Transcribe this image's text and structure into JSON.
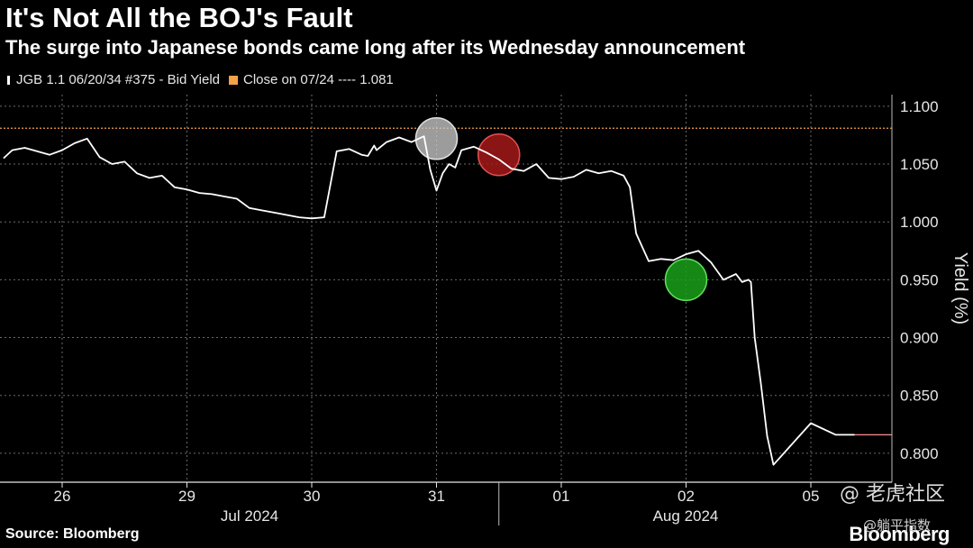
{
  "title": "It's Not All the BOJ's Fault",
  "subtitle": "The surge into Japanese bonds came long after its Wednesday announcement",
  "legend": {
    "series1": "JGB 1.1 06/20/34 #375 - Bid Yield",
    "series2": "Close on 07/24 ---- 1.081"
  },
  "source": "Source: Bloomberg",
  "brand": "Bloomberg",
  "watermark": {
    "primary": "@ 老虎社区",
    "secondary": "@躺平指数"
  },
  "colors": {
    "series": "#ffffff",
    "reference": "#f5a04a",
    "highlight_1": "#bdbdbd",
    "highlight_2": "#c0392b",
    "highlight_3": "#27ae27"
  },
  "chart_data": {
    "type": "line",
    "ylabel": "Yield (%)",
    "ylim": [
      0.775,
      1.11
    ],
    "y_ticks": [
      "1.100",
      "1.050",
      "1.000",
      "0.950",
      "0.900",
      "0.850",
      "0.800"
    ],
    "x_day_labels": [
      "26",
      "29",
      "30",
      "31",
      "01",
      "02",
      "05"
    ],
    "x_month_labels": [
      "Jul 2024",
      "Aug 2024"
    ],
    "reference_line": {
      "label": "Close on 07/24",
      "value": 1.081
    },
    "series": [
      {
        "name": "JGB 1.1 06/20/34 #375 - Bid Yield",
        "x_unit": "trading days from Jul 26 (0 = Jul 26, 1 = Jul 29, 2 = Jul 30, 3 = Jul 31, 4 = Aug 01, 5 = Aug 02, 6 = Aug 05)",
        "x": [
          -0.47,
          -0.4,
          -0.3,
          -0.2,
          -0.1,
          0.0,
          0.1,
          0.2,
          0.3,
          0.4,
          0.5,
          0.6,
          0.7,
          0.8,
          0.9,
          1.0,
          1.1,
          1.2,
          1.3,
          1.4,
          1.5,
          1.6,
          1.7,
          1.8,
          1.9,
          2.0,
          2.1,
          2.2,
          2.3,
          2.4,
          2.45,
          2.5,
          2.52,
          2.6,
          2.7,
          2.8,
          2.9,
          2.95,
          3.0,
          3.05,
          3.1,
          3.15,
          3.2,
          3.3,
          3.4,
          3.5,
          3.6,
          3.7,
          3.8,
          3.9,
          4.0,
          4.1,
          4.2,
          4.3,
          4.4,
          4.5,
          4.55,
          4.6,
          4.7,
          4.8,
          4.9,
          5.0,
          5.1,
          5.2,
          5.3,
          5.4,
          5.45,
          5.5,
          5.52,
          5.55,
          5.6,
          5.65,
          5.7,
          6.0,
          6.2,
          6.35
        ],
        "values": [
          1.055,
          1.062,
          1.064,
          1.061,
          1.058,
          1.062,
          1.068,
          1.072,
          1.056,
          1.05,
          1.052,
          1.042,
          1.038,
          1.04,
          1.03,
          1.028,
          1.025,
          1.024,
          1.022,
          1.02,
          1.012,
          1.01,
          1.008,
          1.006,
          1.004,
          1.003,
          1.004,
          1.061,
          1.063,
          1.058,
          1.057,
          1.066,
          1.062,
          1.069,
          1.073,
          1.069,
          1.074,
          1.045,
          1.027,
          1.042,
          1.05,
          1.047,
          1.062,
          1.065,
          1.06,
          1.054,
          1.046,
          1.044,
          1.05,
          1.038,
          1.037,
          1.039,
          1.045,
          1.042,
          1.044,
          1.04,
          1.03,
          0.99,
          0.966,
          0.968,
          0.967,
          0.972,
          0.975,
          0.965,
          0.95,
          0.955,
          0.948,
          0.95,
          0.948,
          0.9,
          0.86,
          0.815,
          0.79,
          0.826,
          0.816,
          0.816
        ]
      }
    ],
    "highlights": [
      {
        "x": 3.0,
        "value": 1.072,
        "color": "grey"
      },
      {
        "x": 3.5,
        "value": 1.058,
        "color": "red"
      },
      {
        "x": 5.0,
        "value": 0.95,
        "color": "green"
      }
    ]
  }
}
